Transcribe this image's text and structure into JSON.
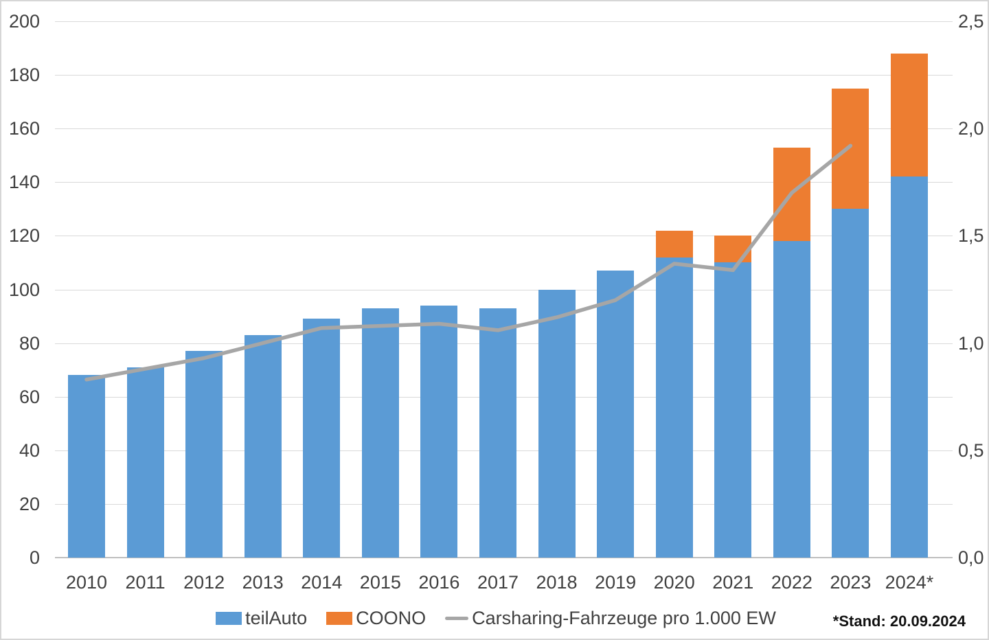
{
  "chart_data": {
    "type": "bar",
    "stacked": true,
    "title": "",
    "xlabel": "",
    "ylabel_left": "",
    "ylabel_right": "",
    "grid": true,
    "legend_position": "bottom",
    "categories": [
      "2010",
      "2011",
      "2012",
      "2013",
      "2014",
      "2015",
      "2016",
      "2017",
      "2018",
      "2019",
      "2020",
      "2021",
      "2022",
      "2023",
      "2024*"
    ],
    "series": [
      {
        "name": "teilAuto",
        "kind": "bar",
        "color": "#5B9BD5",
        "axis": "left",
        "values": [
          68,
          71,
          77,
          83,
          89,
          93,
          94,
          93,
          100,
          107,
          112,
          110,
          118,
          130,
          142
        ]
      },
      {
        "name": "COONO",
        "kind": "bar",
        "color": "#ED7D31",
        "axis": "left",
        "values": [
          0,
          0,
          0,
          0,
          0,
          0,
          0,
          0,
          0,
          0,
          10,
          10,
          35,
          45,
          46
        ]
      },
      {
        "name": "Carsharing-Fahrzeuge pro 1.000 EW",
        "kind": "line",
        "color": "#A6A6A6",
        "axis": "right",
        "values": [
          0.83,
          0.88,
          0.93,
          1.0,
          1.07,
          1.08,
          1.09,
          1.06,
          1.12,
          1.2,
          1.37,
          1.34,
          1.7,
          1.92,
          null
        ]
      }
    ],
    "stacked_totals": [
      68,
      71,
      77,
      83,
      89,
      93,
      94,
      93,
      100,
      107,
      122,
      120,
      153,
      175,
      188
    ],
    "left_axis": {
      "min": 0,
      "max": 200,
      "step": 20,
      "labels": [
        "0",
        "20",
        "40",
        "60",
        "80",
        "100",
        "120",
        "140",
        "160",
        "180",
        "200"
      ]
    },
    "right_axis": {
      "min": 0,
      "max": 2.5,
      "step": 0.5,
      "labels": [
        "0,0",
        "0,5",
        "1,0",
        "1,5",
        "2,0",
        "2,5"
      ]
    },
    "legend": [
      {
        "label": "teilAuto",
        "swatch": "square",
        "color": "#5B9BD5"
      },
      {
        "label": "COONO",
        "swatch": "square",
        "color": "#ED7D31"
      },
      {
        "label": "Carsharing-Fahrzeuge pro 1.000 EW",
        "swatch": "line",
        "color": "#A6A6A6"
      }
    ],
    "footnote": "*Stand: 20.09.2024",
    "colors": {
      "gridline": "#d9d9d9",
      "axis_line": "#bfbfbf",
      "text": "#404040"
    }
  }
}
